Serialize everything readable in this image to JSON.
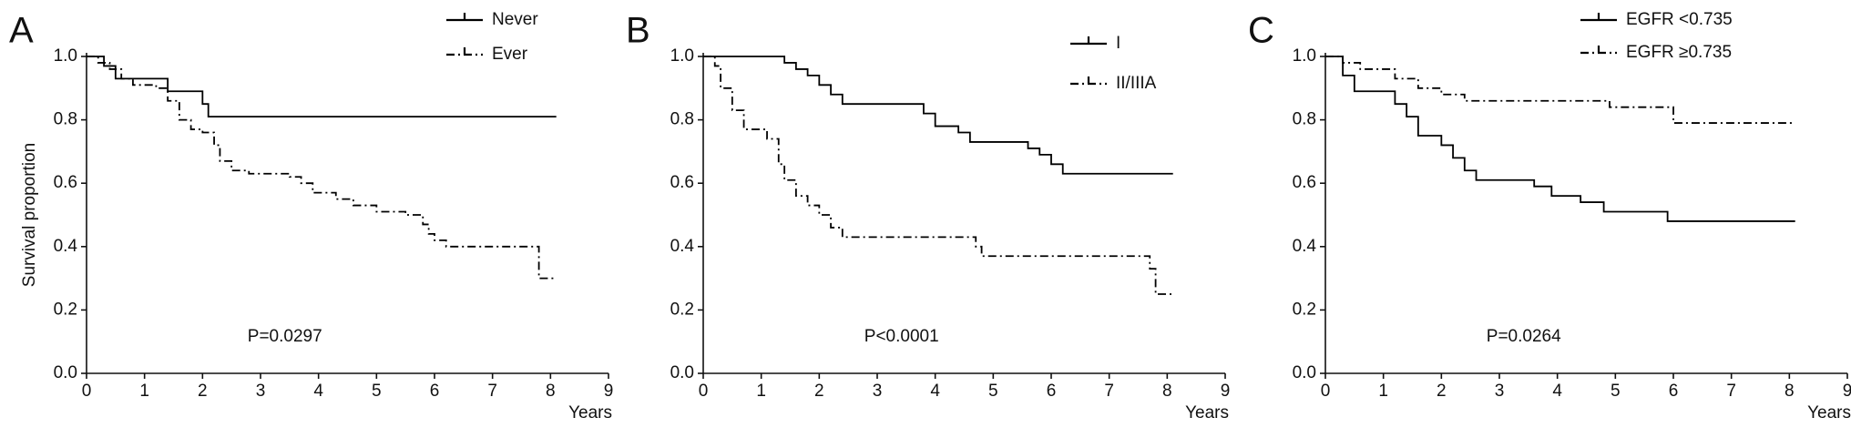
{
  "chart_data": [
    {
      "type": "line",
      "step": true,
      "panel": "A",
      "ylabel": "Survival proportion",
      "xlabel": "Years",
      "annotation": "P=0.0297",
      "xlim": [
        0,
        9
      ],
      "xticks": [
        0,
        1,
        2,
        3,
        4,
        5,
        6,
        7,
        8,
        9
      ],
      "ylim": [
        0,
        1
      ],
      "yticks": [
        {
          "value": 0,
          "label": "0.0"
        },
        {
          "value": 0.2,
          "label": "0.2"
        },
        {
          "value": 0.4,
          "label": "0.4"
        },
        {
          "value": 0.6,
          "label": "0.6"
        },
        {
          "value": 0.8,
          "label": "0.8"
        },
        {
          "value": 1,
          "label": "1.0"
        }
      ],
      "series": [
        {
          "name": "Never",
          "color": "#000000",
          "style": "solid",
          "x": [
            0,
            0.3,
            0.5,
            1.4,
            2.0,
            2.1,
            8.1
          ],
          "values": [
            1,
            0.97,
            0.93,
            0.89,
            0.85,
            0.81,
            0.81
          ]
        },
        {
          "name": "Ever",
          "color": "#000000",
          "style": "dashdot",
          "x": [
            0,
            0.2,
            0.4,
            0.6,
            0.8,
            1.2,
            1.4,
            1.6,
            1.8,
            2.0,
            2.2,
            2.3,
            2.5,
            2.8,
            3.5,
            3.7,
            3.9,
            4.3,
            4.6,
            5.0,
            5.5,
            5.8,
            5.9,
            6.0,
            6.2,
            7.8,
            8.1
          ],
          "values": [
            1,
            0.98,
            0.96,
            0.93,
            0.91,
            0.9,
            0.86,
            0.8,
            0.77,
            0.76,
            0.72,
            0.67,
            0.64,
            0.63,
            0.62,
            0.6,
            0.57,
            0.55,
            0.53,
            0.51,
            0.5,
            0.47,
            0.44,
            0.42,
            0.4,
            0.3,
            0.3
          ]
        }
      ]
    },
    {
      "type": "line",
      "step": true,
      "panel": "B",
      "xlabel": "Years",
      "annotation": "P<0.0001",
      "xlim": [
        0,
        9
      ],
      "xticks": [
        0,
        1,
        2,
        3,
        4,
        5,
        6,
        7,
        8,
        9
      ],
      "ylim": [
        0,
        1
      ],
      "yticks": [
        {
          "value": 0,
          "label": "0.0"
        },
        {
          "value": 0.2,
          "label": "0.2"
        },
        {
          "value": 0.4,
          "label": "0.4"
        },
        {
          "value": 0.6,
          "label": "0.6"
        },
        {
          "value": 0.8,
          "label": "0.8"
        },
        {
          "value": 1,
          "label": "1.0"
        }
      ],
      "series": [
        {
          "name": "I",
          "color": "#000000",
          "style": "solid",
          "x": [
            0,
            1.2,
            1.4,
            1.6,
            1.8,
            2.0,
            2.2,
            2.4,
            3.8,
            4.0,
            4.4,
            4.6,
            5.6,
            5.8,
            6.0,
            6.2,
            8.1
          ],
          "values": [
            1,
            1,
            0.98,
            0.96,
            0.94,
            0.91,
            0.88,
            0.85,
            0.82,
            0.78,
            0.76,
            0.73,
            0.71,
            0.69,
            0.66,
            0.63,
            0.63
          ]
        },
        {
          "name": "II/IIIA",
          "color": "#000000",
          "style": "dashdot",
          "x": [
            0,
            0.2,
            0.3,
            0.5,
            0.7,
            1.1,
            1.3,
            1.4,
            1.6,
            1.8,
            2.0,
            2.2,
            2.4,
            4.7,
            4.8,
            7.7,
            7.8,
            8.1
          ],
          "values": [
            1,
            0.97,
            0.9,
            0.83,
            0.77,
            0.74,
            0.66,
            0.61,
            0.56,
            0.53,
            0.5,
            0.46,
            0.43,
            0.4,
            0.37,
            0.33,
            0.25,
            0.25
          ]
        }
      ]
    },
    {
      "type": "line",
      "step": true,
      "panel": "C",
      "xlabel": "Years",
      "annotation": "P=0.0264",
      "xlim": [
        0,
        9
      ],
      "xticks": [
        0,
        1,
        2,
        3,
        4,
        5,
        6,
        7,
        8,
        9
      ],
      "ylim": [
        0,
        1
      ],
      "yticks": [
        {
          "value": 0,
          "label": "0.0"
        },
        {
          "value": 0.2,
          "label": "0.2"
        },
        {
          "value": 0.4,
          "label": "0.4"
        },
        {
          "value": 0.6,
          "label": "0.6"
        },
        {
          "value": 0.8,
          "label": "0.8"
        },
        {
          "value": 1,
          "label": "1.0"
        }
      ],
      "series": [
        {
          "name": "EGFR <0.735",
          "color": "#000000",
          "style": "solid",
          "x": [
            0,
            0.3,
            0.5,
            1.2,
            1.4,
            1.6,
            2.0,
            2.2,
            2.4,
            2.6,
            3.6,
            3.9,
            4.4,
            4.8,
            5.9,
            8.1
          ],
          "values": [
            1,
            0.94,
            0.89,
            0.85,
            0.81,
            0.75,
            0.72,
            0.68,
            0.64,
            0.61,
            0.59,
            0.56,
            0.54,
            0.51,
            0.48,
            0.48
          ]
        },
        {
          "name": "EGFR ≥0.735",
          "color": "#000000",
          "style": "dashdot",
          "x": [
            0,
            0.3,
            0.6,
            1.2,
            1.6,
            2.0,
            2.4,
            4.9,
            6.0,
            8.1
          ],
          "values": [
            1,
            0.98,
            0.96,
            0.93,
            0.9,
            0.88,
            0.86,
            0.84,
            0.79,
            0.79
          ]
        }
      ]
    }
  ]
}
